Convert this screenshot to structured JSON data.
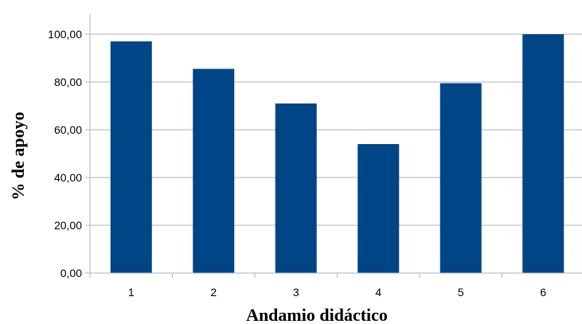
{
  "chart_data": {
    "type": "bar",
    "categories": [
      "1",
      "2",
      "3",
      "4",
      "5",
      "6"
    ],
    "values": [
      97.0,
      85.5,
      71.0,
      54.0,
      79.5,
      100.0
    ],
    "xlabel": "Andamio didáctico",
    "ylabel": "% de apoyo",
    "ylim": [
      0,
      100
    ],
    "yticks": [
      "0,00",
      "20,00",
      "40,00",
      "60,00",
      "80,00",
      "100,00"
    ],
    "grid": true,
    "bar_color": "#004586",
    "grid_color": "#b3b3b3"
  }
}
